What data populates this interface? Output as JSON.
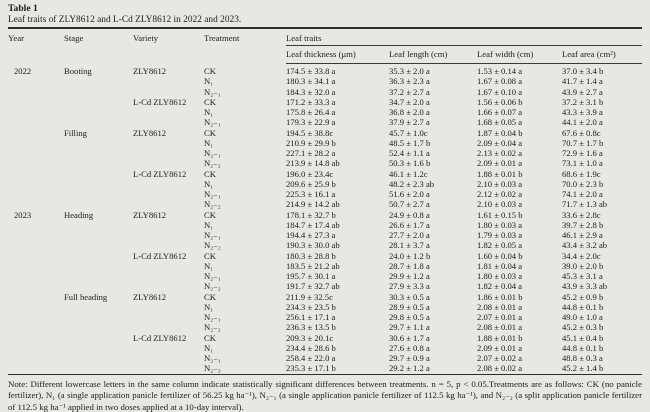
{
  "page": {
    "background": "#e8e7e3",
    "text_color": "#1b1b1b",
    "rule_color": "#2e2e2c"
  },
  "table": {
    "label": "Table 1",
    "caption": "Leaf traits of ZLY8612 and L-Cd ZLY8612 in 2022 and 2023.",
    "columns": [
      "Year",
      "Stage",
      "Variety",
      "Treatment"
    ],
    "group_header": "Leaf traits",
    "trait_columns": [
      "Leaf thickness (μm)",
      "Leaf length (cm)",
      "Leaf width (cm)",
      "Leaf area (cm²)"
    ],
    "rows": [
      [
        "2022",
        "Booting",
        "ZLY8612",
        "CK",
        "174.5 ± 33.8 a",
        "35.3 ± 2.0 a",
        "1.53 ± 0.14 a",
        "37.0 ± 3.4 b"
      ],
      [
        "",
        "",
        "",
        "N₁",
        "180.3 ± 34.1 a",
        "36.3 ± 2.3 a",
        "1.67 ± 0.08 a",
        "41.7 ± 1.4 a"
      ],
      [
        "",
        "",
        "",
        "N₂₋₁",
        "184.3 ± 32.0 a",
        "37.2 ± 2.7 a",
        "1.67 ± 0.10 a",
        "43.9 ± 2.7 a"
      ],
      [
        "",
        "",
        "L-Cd ZLY8612",
        "CK",
        "171.2 ± 33.3 a",
        "34.7 ± 2.0 a",
        "1.56 ± 0.06 b",
        "37.2 ± 3.1 b"
      ],
      [
        "",
        "",
        "",
        "N₁",
        "175.8 ± 26.4 a",
        "36.8 ± 2.0 a",
        "1.66 ± 0.07 a",
        "43.3 ± 3.9 a"
      ],
      [
        "",
        "",
        "",
        "N₂₋₁",
        "179.3 ± 22.9 a",
        "37.9 ± 2.7 a",
        "1.68 ± 0.05 a",
        "44.1 ± 2.0 a"
      ],
      [
        "",
        "Filling",
        "ZLY8612",
        "CK",
        "194.5 ± 38.8c",
        "45.7 ± 1.0c",
        "1.87 ± 0.04 b",
        "67.6 ± 0.8c"
      ],
      [
        "",
        "",
        "",
        "N₁",
        "210.9 ± 29.9 b",
        "48.5 ± 1.7 b",
        "2.09 ± 0.04 a",
        "70.7 ± 1.7 b"
      ],
      [
        "",
        "",
        "",
        "N₂₋₁",
        "227.1 ± 28.2 a",
        "52.4 ± 1.1 a",
        "2.13 ± 0.02 a",
        "72.9 ± 1.6 a"
      ],
      [
        "",
        "",
        "",
        "N₂₋₂",
        "213.9 ± 14.8 ab",
        "50.3 ± 1.6 b",
        "2.09 ± 0.01 a",
        "73.1 ± 1.0 a"
      ],
      [
        "",
        "",
        "L-Cd ZLY8612",
        "CK",
        "196.0 ± 23.4c",
        "46.1 ± 1.2c",
        "1.88 ± 0.01 b",
        "68.6 ± 1.9c"
      ],
      [
        "",
        "",
        "",
        "N₁",
        "209.6 ± 25.9 b",
        "48.2 ± 2.3 ab",
        "2.10 ± 0.03 a",
        "70.0 ± 2.3 b"
      ],
      [
        "",
        "",
        "",
        "N₂₋₁",
        "225.3 ± 16.1 a",
        "51.6 ± 2.0 a",
        "2.12 ± 0.02 a",
        "74.1 ± 2.0 a"
      ],
      [
        "",
        "",
        "",
        "N₂₋₂",
        "214.9 ± 14.2 ab",
        "50.7 ± 2.7 a",
        "2.10 ± 0.03 a",
        "71.7 ± 1.3 ab"
      ],
      [
        "2023",
        "Heading",
        "ZLY8612",
        "CK",
        "178.1 ± 32.7 b",
        "24.9 ± 0.8 a",
        "1.61 ± 0.15 b",
        "33.6 ± 2.8c"
      ],
      [
        "",
        "",
        "",
        "N₁",
        "184.7 ± 17.4 ab",
        "26.6 ± 1.7 a",
        "1.80 ± 0.03 a",
        "39.7 ± 2.8 b"
      ],
      [
        "",
        "",
        "",
        "N₂₋₁",
        "194.4 ± 27.3 a",
        "27.7 ± 2.0 a",
        "1.79 ± 0.03 a",
        "46.1 ± 2.9 a"
      ],
      [
        "",
        "",
        "",
        "N₂₋₂",
        "190.3 ± 30.0 ab",
        "28.1 ± 3.7 a",
        "1.82 ± 0.05 a",
        "43.4 ± 3.2 ab"
      ],
      [
        "",
        "",
        "L-Cd ZLY8612",
        "CK",
        "180.3 ± 28.8 b",
        "24.0 ± 1.2 b",
        "1.60 ± 0.04 b",
        "34.4 ± 2.0c"
      ],
      [
        "",
        "",
        "",
        "N₁",
        "183.5 ± 21.2 ab",
        "28.7 ± 1.8 a",
        "1.81 ± 0.04 a",
        "39.0 ± 2.0 b"
      ],
      [
        "",
        "",
        "",
        "N₂₋₁",
        "195.7 ± 30.1 a",
        "29.9 ± 1.2 a",
        "1.80 ± 0.03 a",
        "45.3 ± 3.1 a"
      ],
      [
        "",
        "",
        "",
        "N₂₋₂",
        "191.7 ± 32.7 ab",
        "27.9 ± 3.3 a",
        "1.82 ± 0.04 a",
        "43.9 ± 3.3 ab"
      ],
      [
        "",
        "Full heading",
        "ZLY8612",
        "CK",
        "211.9 ± 32.5c",
        "30.3 ± 0.5 a",
        "1.86 ± 0.01 b",
        "45.2 ± 0.9 b"
      ],
      [
        "",
        "",
        "",
        "N₁",
        "234.3 ± 23.5 b",
        "28.9 ± 0.5 a",
        "2.08 ± 0.01 a",
        "44.8 ± 0.1 b"
      ],
      [
        "",
        "",
        "",
        "N₂₋₁",
        "256.1 ± 17.1 a",
        "29.8 ± 0.5 a",
        "2.07 ± 0.01 a",
        "49.0 ± 1.0 a"
      ],
      [
        "",
        "",
        "",
        "N₂₋₂",
        "236.3 ± 13.5 b",
        "29.7 ± 1.1 a",
        "2.08 ± 0.01 a",
        "45.2 ± 0.3 b"
      ],
      [
        "",
        "",
        "L-Cd ZLY8612",
        "CK",
        "209.3 ± 20.1c",
        "30.6 ± 1.7 a",
        "1.88 ± 0.01 b",
        "45.1 ± 0.4 b"
      ],
      [
        "",
        "",
        "",
        "N₁",
        "234.4 ± 28.6 b",
        "27.6 ± 0.8 a",
        "2.09 ± 0.01 a",
        "44.8 ± 0.1 b"
      ],
      [
        "",
        "",
        "",
        "N₂₋₁",
        "258.4 ± 22.0 a",
        "29.7 ± 0.9 a",
        "2.07 ± 0.02 a",
        "48.8 ± 0.3 a"
      ],
      [
        "",
        "",
        "",
        "N₂₋₂",
        "235.3 ± 17.1 b",
        "29.2 ± 1.2 a",
        "2.08 ± 0.02 a",
        "45.2 ± 1.4 b"
      ]
    ],
    "note": "Note: Different lowercase letters in the same column indicate statistically significant differences between treatments. n = 5, p < 0.05.Treatments are as follows: CK (no panicle fertilizer), N₁ (a single application panicle fertilizer of 56.25 kg ha⁻¹), N₂₋₁ (a single application panicle fertilizer of 112.5 kg ha⁻¹), and N₂₋₂ (a split application panicle fertilizer of 112.5 kg ha⁻¹ applied in two doses applied at a 10-day interval)."
  }
}
